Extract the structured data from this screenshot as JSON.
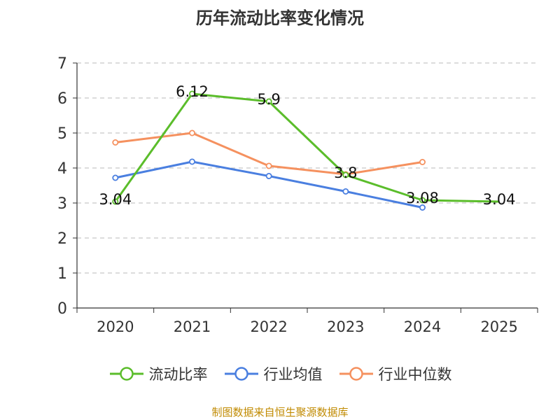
{
  "chart_data": {
    "type": "line",
    "title": "历年流动比率变化情况",
    "categories": [
      "2020",
      "2021",
      "2022",
      "2023",
      "2024",
      "2025"
    ],
    "ylim": [
      0,
      7
    ],
    "yticks": [
      0,
      1,
      2,
      3,
      4,
      5,
      6,
      7
    ],
    "grid": "horizontal-dashed",
    "xlabel": "",
    "ylabel": "",
    "legend_position": "bottom",
    "series": [
      {
        "name": "流动比率",
        "color": "#5bbd2b",
        "values": [
          3.04,
          6.12,
          5.9,
          3.8,
          3.08,
          3.04
        ],
        "labels": [
          "3.04",
          "6.12",
          "5.9",
          "3.8",
          "3.08",
          "3.04"
        ]
      },
      {
        "name": "行业均值",
        "color": "#4a7fe0",
        "values": [
          3.72,
          4.18,
          3.77,
          3.33,
          2.87,
          null
        ]
      },
      {
        "name": "行业中位数",
        "color": "#f5915f",
        "values": [
          4.73,
          5.0,
          4.06,
          3.82,
          4.17,
          null
        ]
      }
    ]
  },
  "source_note": "制图数据来自恒生聚源数据库"
}
